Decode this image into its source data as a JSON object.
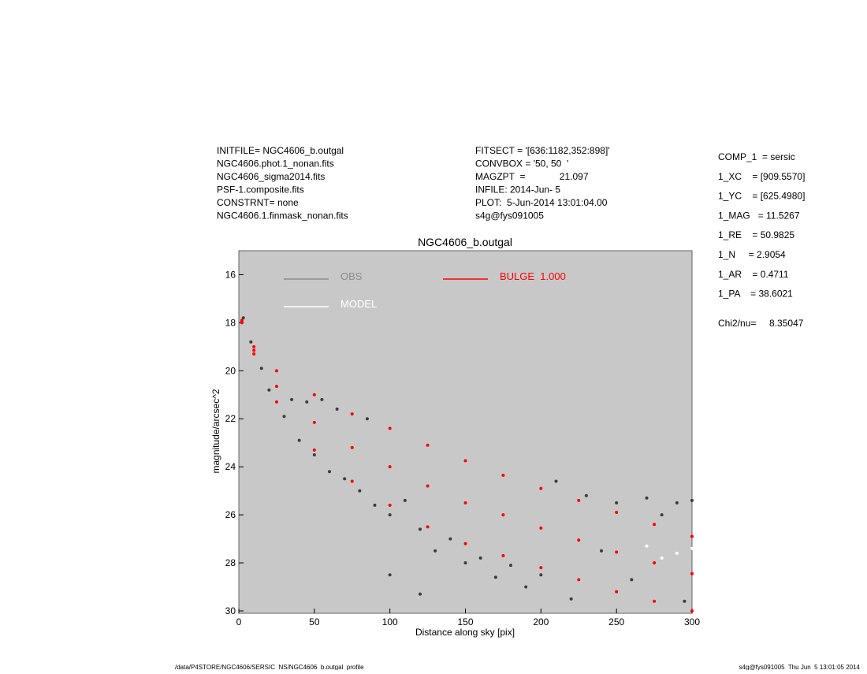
{
  "header": {
    "left": [
      "INITFILE= NGC4606_b.outgal",
      "NGC4606.phot.1_nonan.fits",
      "NGC4606_sigma2014.fits",
      "PSF-1.composite.fits",
      "CONSTRNT= none",
      "NGC4606.1.finmask_nonan.fits"
    ],
    "center": [
      "FITSECT = '[636:1182,352:898]'",
      "CONVBOX = '50, 50  '",
      "MAGZPT  =             21.097",
      "INFILE: 2014-Jun- 5",
      "PLOT:  5-Jun-2014 13:01:04.00",
      "s4g@fys091005"
    ]
  },
  "components": [
    "COMP_1  = sersic",
    "1_XC    = [909.5570]",
    "1_YC    = [625.4980]",
    "1_MAG   = 11.5267",
    "1_RE    = 50.9825",
    "1_N     = 2.9054",
    "1_AR    = 0.4711",
    "1_PA    = 38.6021"
  ],
  "chi2": "Chi2/nu=     8.35047",
  "footer": {
    "left": "/data/P4STORE/NGC4606/SERSIC_NS/NGC4606_b.outgal_profile",
    "right": "s4g@fys091005  Thu Jun  5 13:01:05 2014"
  },
  "chart_data": {
    "type": "scatter",
    "title": "NGC4606_b.outgal",
    "x_label": "Distance along sky [pix]",
    "y_label": "magnitude/arcsec^2",
    "xlim": [
      0,
      300
    ],
    "ylim": [
      30.1,
      15
    ],
    "xticks": [
      0,
      50,
      100,
      150,
      200,
      250,
      300
    ],
    "yticks": [
      16,
      18,
      20,
      22,
      24,
      26,
      28,
      30
    ],
    "background": "#c8c8c8",
    "series": [
      {
        "name": "OBS",
        "color": "#3c3c3c",
        "legend_color": "#8c8c8c",
        "x": [
          3,
          8,
          15,
          20,
          30,
          35,
          40,
          45,
          50,
          55,
          60,
          65,
          70,
          80,
          85,
          90,
          100,
          110,
          120,
          130,
          140,
          150,
          160,
          170,
          180,
          190,
          200,
          210,
          220,
          230,
          240,
          250,
          260,
          270,
          280,
          290,
          300,
          295,
          120,
          100
        ],
        "y": [
          17.8,
          18.8,
          19.9,
          20.8,
          21.9,
          21.2,
          22.9,
          21.3,
          23.5,
          21.2,
          24.2,
          21.6,
          24.5,
          25.0,
          22.0,
          25.6,
          26.0,
          25.4,
          26.6,
          27.5,
          27.0,
          28.0,
          27.8,
          28.6,
          28.1,
          29.0,
          28.5,
          24.6,
          29.5,
          25.2,
          27.5,
          25.5,
          28.7,
          25.3,
          26.0,
          25.5,
          25.4,
          29.6,
          29.3,
          28.5
        ]
      },
      {
        "name": "MODEL",
        "color": "#ffffff",
        "x": [
          270,
          280,
          290,
          300
        ],
        "y": [
          27.3,
          27.8,
          27.6,
          27.4
        ]
      },
      {
        "name": "BULGE  1.000",
        "color": "#ff0000",
        "x": [
          2,
          10,
          25,
          50,
          75,
          100,
          125,
          150,
          175,
          200,
          225,
          250,
          275,
          300,
          2,
          10,
          25,
          50,
          75,
          100,
          125,
          150,
          175,
          200,
          225,
          250,
          275,
          300,
          2,
          10,
          25,
          50,
          75,
          100,
          125,
          150,
          175,
          200,
          225,
          250,
          275,
          300
        ],
        "y": [
          17.9,
          19.0,
          20.0,
          21.0,
          21.8,
          22.4,
          23.1,
          23.75,
          24.35,
          24.9,
          25.4,
          25.9,
          26.4,
          26.9,
          18.0,
          19.3,
          21.3,
          23.3,
          24.6,
          25.6,
          26.5,
          27.2,
          27.7,
          28.2,
          28.7,
          29.2,
          29.6,
          30.0,
          17.95,
          19.15,
          20.65,
          22.15,
          23.2,
          24.0,
          24.8,
          25.5,
          26.0,
          26.55,
          27.05,
          27.55,
          28.0,
          28.45
        ]
      }
    ]
  }
}
